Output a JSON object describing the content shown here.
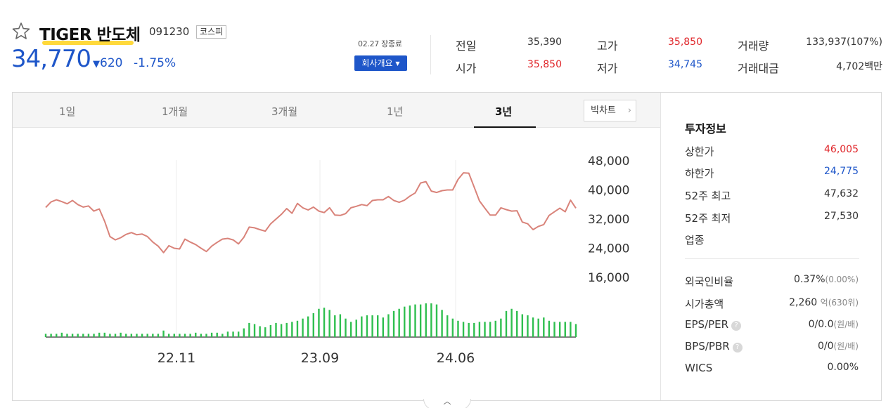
{
  "stock": {
    "name": "TIGER 반도체",
    "code": "091230",
    "market": "코스피",
    "price": "34,770",
    "change_arrow": "▼",
    "change": "620",
    "rate": "-1.75%",
    "date_status": "02.27 장종료",
    "company_button": "회사개요"
  },
  "stats": {
    "prev_close_label": "전일",
    "prev_close": "35,390",
    "open_label": "시가",
    "open": "35,850",
    "high_label": "고가",
    "high": "35,850",
    "low_label": "저가",
    "low": "34,745",
    "volume_label": "거래량",
    "volume": "133,937(107%)",
    "amount_label": "거래대금",
    "amount": "4,702백만"
  },
  "tabs": [
    "1일",
    "1개월",
    "3개월",
    "1년",
    "3년"
  ],
  "active_tab": "3년",
  "bigchart_label": "빅차트",
  "info": {
    "title": "투자정보",
    "upper_limit_label": "상한가",
    "upper_limit": "46,005",
    "lower_limit_label": "하한가",
    "lower_limit": "24,775",
    "high52_label": "52주 최고",
    "high52": "47,632",
    "low52_label": "52주 최저",
    "low52": "27,530",
    "industry_label": "업종",
    "foreign_label": "외국인비율",
    "foreign": "0.37%",
    "foreign_sub": "(0.00%)",
    "mcap_label": "시가총액",
    "mcap": "2,260",
    "mcap_unit": "억",
    "mcap_sub": "(630위)",
    "eps_label": "EPS/PER",
    "eps": "0/0.0",
    "eps_unit": "(원/배)",
    "bps_label": "BPS/PBR",
    "bps": "0/0",
    "bps_unit": "(원/배)",
    "wics_label": "WICS",
    "wics": "0.00%"
  },
  "colors": {
    "up": "#e0262a",
    "down": "#1e56c9",
    "line": "#d9837a",
    "volume": "#2fbf4f",
    "highlight": "#ffd93b"
  },
  "icons": {
    "favorite": "star-outline-icon",
    "dropdown": "caret-down-icon",
    "chevron": "chevron-right-icon",
    "help": "question-icon",
    "collapse": "chevron-up-icon"
  },
  "chart_data": {
    "type": "line",
    "y_ticks": [
      "48,000",
      "40,000",
      "32,000",
      "24,000",
      "16,000"
    ],
    "ylim": [
      16000,
      48000
    ],
    "x_ticks": [
      "22.11",
      "23.09",
      "24.06"
    ],
    "price": [
      35200,
      36700,
      37300,
      36800,
      36200,
      37100,
      36000,
      35300,
      35600,
      34200,
      34800,
      31400,
      27200,
      26300,
      26900,
      27800,
      28300,
      27700,
      27900,
      27200,
      25700,
      24600,
      22800,
      24700,
      24000,
      23800,
      26500,
      25700,
      25000,
      24000,
      23100,
      24600,
      25600,
      26500,
      26700,
      26300,
      25200,
      27000,
      29800,
      29600,
      29100,
      28700,
      30700,
      32000,
      33300,
      34900,
      33600,
      36300,
      35100,
      34500,
      35300,
      34200,
      33800,
      35100,
      33100,
      33000,
      33500,
      35100,
      35500,
      36000,
      35700,
      37100,
      37300,
      37300,
      38200,
      37100,
      36600,
      37200,
      38300,
      39200,
      41900,
      42300,
      39700,
      39300,
      39800,
      40000,
      40000,
      42900,
      44700,
      44600,
      40800,
      37000,
      35000,
      33100,
      33100,
      35100,
      34600,
      34200,
      34300,
      31200,
      30700,
      29100,
      30000,
      30500,
      33000,
      34000,
      35000,
      34000,
      37200,
      35000
    ],
    "volume": [
      3,
      3,
      3,
      4,
      3,
      3,
      3,
      3,
      3,
      3,
      4,
      4,
      3,
      3,
      4,
      3,
      3,
      3,
      3,
      3,
      3,
      3,
      6,
      3,
      3,
      3,
      3,
      3,
      4,
      3,
      3,
      4,
      4,
      3,
      5,
      5,
      5,
      8,
      13,
      12,
      10,
      9,
      11,
      13,
      12,
      13,
      14,
      15,
      17,
      19,
      22,
      26,
      27,
      25,
      20,
      21,
      17,
      14,
      16,
      19,
      20,
      20,
      20,
      18,
      21,
      24,
      26,
      28,
      29,
      30,
      30,
      31,
      31,
      30,
      25,
      20,
      17,
      15,
      14,
      13,
      13,
      14,
      14,
      14,
      15,
      17,
      24,
      26,
      24,
      21,
      20,
      18,
      17,
      18,
      15,
      14,
      14,
      14,
      14,
      12
    ]
  }
}
